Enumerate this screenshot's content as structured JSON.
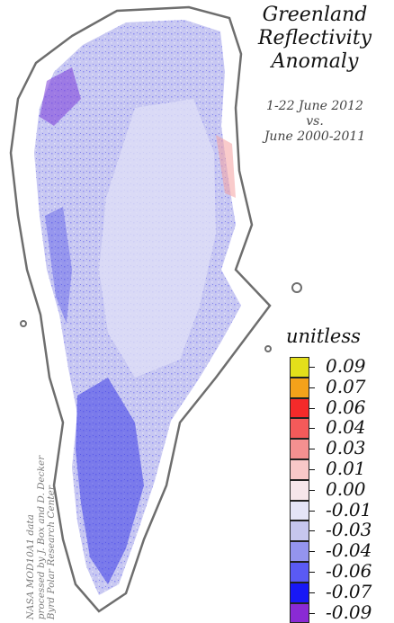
{
  "title": [
    "Greenland",
    "Reflectivity",
    "Anomaly"
  ],
  "subtitle": [
    "1-22 June 2012",
    "vs.",
    "June 2000-2011"
  ],
  "legend": {
    "unit": "unitless",
    "entries": [
      {
        "label": "0.09",
        "color": "#e3df1a"
      },
      {
        "label": "0.07",
        "color": "#f4a21a"
      },
      {
        "label": "0.06",
        "color": "#f42a2a"
      },
      {
        "label": "0.04",
        "color": "#f45a5a"
      },
      {
        "label": "0.03",
        "color": "#f49090"
      },
      {
        "label": "0.01",
        "color": "#f8c8c8"
      },
      {
        "label": "0.00",
        "color": "#f6e6ea"
      },
      {
        "label": "-0.01",
        "color": "#e4e4f6"
      },
      {
        "label": "-0.03",
        "color": "#c6c6ee"
      },
      {
        "label": "-0.04",
        "color": "#9494ee"
      },
      {
        "label": "-0.06",
        "color": "#5a5af4"
      },
      {
        "label": "-0.07",
        "color": "#1818f6"
      },
      {
        "label": "-0.09",
        "color": "#8a2ad4"
      }
    ]
  },
  "credit": [
    "NASA MOD10A1 data",
    "processed by J. Box and D. Decker",
    "Byrd Polar Research Center"
  ]
}
